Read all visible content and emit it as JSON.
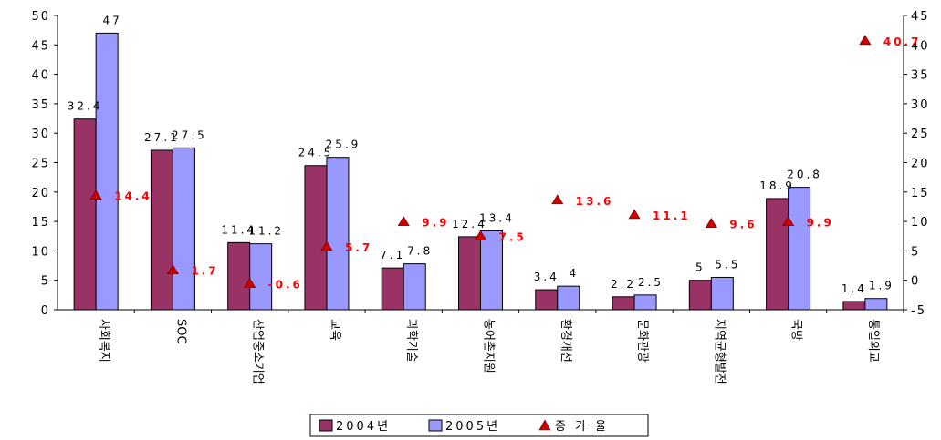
{
  "chart_data": {
    "type": "bar",
    "categories": [
      "사회복지",
      "SOC",
      "산업중소기업",
      "교육",
      "과학기술",
      "농어촌지원",
      "환경개선",
      "문화관광",
      "지역균형발전",
      "국방",
      "통일외교"
    ],
    "series": [
      {
        "name": "2004년",
        "values": [
          32.4,
          27.1,
          11.4,
          24.5,
          7.1,
          12.4,
          3.4,
          2.2,
          5,
          18.9,
          1.4
        ],
        "labels": [
          "32.4",
          "27.1",
          "11.4",
          "24.5",
          "7.1",
          "12.4",
          "3.4",
          "2.2",
          "5",
          "18.9",
          "1.4"
        ],
        "color": "#993366"
      },
      {
        "name": "2005년",
        "values": [
          47,
          27.5,
          11.2,
          25.9,
          7.8,
          13.4,
          4,
          2.5,
          5.5,
          20.8,
          1.9
        ],
        "labels": [
          "47",
          "27.5",
          "11.2",
          "25.9",
          "7.8",
          "13.4",
          "4",
          "2.5",
          "5.5",
          "20.8",
          "1.9"
        ],
        "color": "#9999ff"
      },
      {
        "name": "증 가 율",
        "type": "scatter",
        "axis": "right",
        "values": [
          14.4,
          1.7,
          -0.6,
          5.7,
          9.9,
          7.5,
          13.6,
          11.1,
          9.6,
          9.9,
          40.7
        ],
        "labels": [
          "14.4",
          "1.7",
          "-0.6",
          "5.7",
          "9.9",
          "7.5",
          "13.6",
          "11.1",
          "9.6",
          "9.9",
          "40.7"
        ],
        "color": "#cc0000",
        "label_color": "#ff0000"
      }
    ],
    "left_axis": {
      "ylim": [
        0,
        50
      ],
      "ticks": [
        "0",
        "5",
        "10",
        "15",
        "20",
        "25",
        "30",
        "35",
        "40",
        "45",
        "50"
      ],
      "tick_values": [
        0,
        5,
        10,
        15,
        20,
        25,
        30,
        35,
        40,
        45,
        50
      ]
    },
    "right_axis": {
      "ylim": [
        -5,
        45
      ],
      "ticks": [
        "-5",
        "0",
        "5",
        "10",
        "15",
        "20",
        "25",
        "30",
        "35",
        "40",
        "45"
      ],
      "tick_values": [
        -5,
        0,
        5,
        10,
        15,
        20,
        25,
        30,
        35,
        40,
        45
      ]
    },
    "legend": {
      "position": "bottom-center",
      "items": [
        "2004년",
        "2005년",
        "증 가 율"
      ]
    },
    "grid": false
  }
}
